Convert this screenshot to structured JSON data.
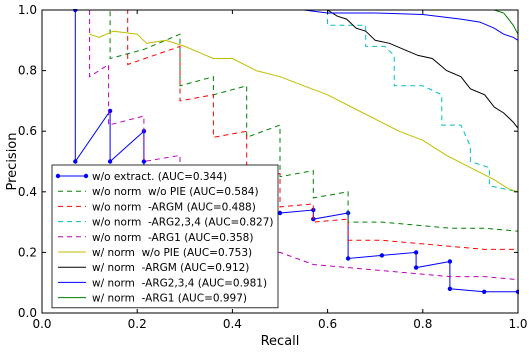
{
  "chart_data": {
    "type": "line",
    "title": "",
    "xlabel": "Recall",
    "ylabel": "Precision",
    "xlim": [
      0.0,
      1.0
    ],
    "ylim": [
      0.0,
      1.0
    ],
    "xticks": [
      "0.0",
      "0.2",
      "0.4",
      "0.6",
      "0.8",
      "1.0"
    ],
    "yticks": [
      "0.0",
      "0.2",
      "0.4",
      "0.6",
      "0.8",
      "1.0"
    ],
    "grid": false,
    "legend_position": "lower-left",
    "series": [
      {
        "name": "w/o extract. (AUC=0.344)",
        "color": "#0000ff",
        "dash": "solid",
        "marker": true,
        "points": [
          [
            0.07,
            1.0
          ],
          [
            0.07,
            0.5
          ],
          [
            0.143,
            0.667
          ],
          [
            0.143,
            0.5
          ],
          [
            0.214,
            0.6
          ],
          [
            0.214,
            0.5
          ],
          [
            0.214,
            0.43
          ],
          [
            0.286,
            0.4
          ],
          [
            0.35,
            0.37
          ],
          [
            0.43,
            0.35
          ],
          [
            0.5,
            0.33
          ],
          [
            0.57,
            0.34
          ],
          [
            0.57,
            0.31
          ],
          [
            0.643,
            0.33
          ],
          [
            0.643,
            0.18
          ],
          [
            0.714,
            0.19
          ],
          [
            0.786,
            0.2
          ],
          [
            0.786,
            0.15
          ],
          [
            0.857,
            0.17
          ],
          [
            0.857,
            0.08
          ],
          [
            0.929,
            0.07
          ],
          [
            1.0,
            0.07
          ]
        ]
      },
      {
        "name": "w/o norm  w/o PIE (AUC=0.584)",
        "color": "#008000",
        "dash": "5,4",
        "marker": false,
        "points": [
          [
            0.07,
            1.0
          ],
          [
            0.143,
            1.0
          ],
          [
            0.143,
            0.84
          ],
          [
            0.214,
            0.87
          ],
          [
            0.29,
            0.92
          ],
          [
            0.29,
            0.75
          ],
          [
            0.36,
            0.78
          ],
          [
            0.36,
            0.72
          ],
          [
            0.43,
            0.75
          ],
          [
            0.43,
            0.58
          ],
          [
            0.5,
            0.62
          ],
          [
            0.5,
            0.45
          ],
          [
            0.57,
            0.47
          ],
          [
            0.57,
            0.38
          ],
          [
            0.643,
            0.4
          ],
          [
            0.643,
            0.3
          ],
          [
            0.714,
            0.3
          ],
          [
            0.786,
            0.29
          ],
          [
            0.857,
            0.28
          ],
          [
            0.93,
            0.28
          ],
          [
            1.0,
            0.27
          ]
        ]
      },
      {
        "name": "w/o norm  -ARGM (AUC=0.488)",
        "color": "#ff0000",
        "dash": "5,4",
        "marker": false,
        "points": [
          [
            0.14,
            1.0
          ],
          [
            0.18,
            1.0
          ],
          [
            0.18,
            0.82
          ],
          [
            0.29,
            0.88
          ],
          [
            0.29,
            0.7
          ],
          [
            0.36,
            0.72
          ],
          [
            0.36,
            0.58
          ],
          [
            0.43,
            0.6
          ],
          [
            0.43,
            0.45
          ],
          [
            0.5,
            0.46
          ],
          [
            0.5,
            0.35
          ],
          [
            0.57,
            0.36
          ],
          [
            0.57,
            0.3
          ],
          [
            0.643,
            0.31
          ],
          [
            0.643,
            0.24
          ],
          [
            0.714,
            0.24
          ],
          [
            0.786,
            0.23
          ],
          [
            0.857,
            0.22
          ],
          [
            0.93,
            0.21
          ],
          [
            1.0,
            0.21
          ]
        ]
      },
      {
        "name": "w/o norm  -ARG2,3,4 (AUC=0.827)",
        "color": "#00bfbf",
        "dash": "5,4",
        "marker": false,
        "points": [
          [
            0.6,
            1.0
          ],
          [
            0.6,
            0.95
          ],
          [
            0.68,
            0.95
          ],
          [
            0.68,
            0.88
          ],
          [
            0.72,
            0.88
          ],
          [
            0.74,
            0.85
          ],
          [
            0.74,
            0.75
          ],
          [
            0.8,
            0.75
          ],
          [
            0.84,
            0.72
          ],
          [
            0.84,
            0.62
          ],
          [
            0.88,
            0.62
          ],
          [
            0.9,
            0.55
          ],
          [
            0.9,
            0.5
          ],
          [
            0.94,
            0.48
          ],
          [
            0.94,
            0.42
          ],
          [
            1.0,
            0.4
          ]
        ]
      },
      {
        "name": "w/o norm  -ARG1 (AUC=0.358)",
        "color": "#bf00bf",
        "dash": "5,4",
        "marker": false,
        "points": [
          [
            0.1,
            1.0
          ],
          [
            0.1,
            0.78
          ],
          [
            0.14,
            0.82
          ],
          [
            0.14,
            0.62
          ],
          [
            0.214,
            0.65
          ],
          [
            0.214,
            0.5
          ],
          [
            0.29,
            0.52
          ],
          [
            0.29,
            0.38
          ],
          [
            0.36,
            0.4
          ],
          [
            0.36,
            0.28
          ],
          [
            0.43,
            0.3
          ],
          [
            0.43,
            0.2
          ],
          [
            0.5,
            0.2
          ],
          [
            0.57,
            0.16
          ],
          [
            0.643,
            0.15
          ],
          [
            0.714,
            0.14
          ],
          [
            0.786,
            0.13
          ],
          [
            0.857,
            0.12
          ],
          [
            0.93,
            0.12
          ],
          [
            1.0,
            0.11
          ]
        ]
      },
      {
        "name": "w/ norm  w/o PIE (AUC=0.753)",
        "color": "#bfbf00",
        "dash": "solid",
        "marker": false,
        "points": [
          [
            0.1,
            0.92
          ],
          [
            0.12,
            0.91
          ],
          [
            0.15,
            0.93
          ],
          [
            0.2,
            0.92
          ],
          [
            0.22,
            0.89
          ],
          [
            0.26,
            0.9
          ],
          [
            0.3,
            0.88
          ],
          [
            0.33,
            0.86
          ],
          [
            0.36,
            0.84
          ],
          [
            0.4,
            0.84
          ],
          [
            0.45,
            0.8
          ],
          [
            0.5,
            0.78
          ],
          [
            0.55,
            0.75
          ],
          [
            0.6,
            0.72
          ],
          [
            0.65,
            0.68
          ],
          [
            0.7,
            0.64
          ],
          [
            0.75,
            0.6
          ],
          [
            0.8,
            0.57
          ],
          [
            0.85,
            0.52
          ],
          [
            0.9,
            0.48
          ],
          [
            0.95,
            0.44
          ],
          [
            0.98,
            0.41
          ],
          [
            1.0,
            0.4
          ]
        ]
      },
      {
        "name": "w/ norm  -ARGM (AUC=0.912)",
        "color": "#000000",
        "dash": "solid",
        "marker": false,
        "points": [
          [
            0.6,
            1.0
          ],
          [
            0.62,
            0.98
          ],
          [
            0.64,
            0.97
          ],
          [
            0.66,
            0.94
          ],
          [
            0.68,
            0.93
          ],
          [
            0.7,
            0.9
          ],
          [
            0.73,
            0.89
          ],
          [
            0.76,
            0.87
          ],
          [
            0.79,
            0.85
          ],
          [
            0.82,
            0.84
          ],
          [
            0.85,
            0.8
          ],
          [
            0.88,
            0.78
          ],
          [
            0.9,
            0.74
          ],
          [
            0.93,
            0.72
          ],
          [
            0.95,
            0.68
          ],
          [
            0.97,
            0.66
          ],
          [
            0.99,
            0.63
          ],
          [
            1.0,
            0.61
          ]
        ]
      },
      {
        "name": "w/ norm  -ARG2,3,4 (AUC=0.981)",
        "color": "#0000ff",
        "dash": "solid",
        "marker": false,
        "points": [
          [
            0.35,
            1.0
          ],
          [
            0.55,
            1.0
          ],
          [
            0.6,
            0.99
          ],
          [
            0.7,
            0.99
          ],
          [
            0.8,
            0.985
          ],
          [
            0.88,
            0.97
          ],
          [
            0.92,
            0.96
          ],
          [
            0.95,
            0.94
          ],
          [
            0.97,
            0.92
          ],
          [
            0.99,
            0.91
          ],
          [
            1.0,
            0.9
          ]
        ]
      },
      {
        "name": "w/ norm  -ARG1 (AUC=0.997)",
        "color": "#008000",
        "dash": "solid",
        "marker": false,
        "points": [
          [
            0.7,
            1.0
          ],
          [
            0.95,
            1.0
          ],
          [
            0.96,
            0.995
          ],
          [
            0.97,
            0.99
          ],
          [
            0.98,
            0.97
          ],
          [
            0.99,
            0.95
          ],
          [
            1.0,
            0.92
          ],
          [
            1.0,
            0.88
          ]
        ]
      }
    ]
  }
}
